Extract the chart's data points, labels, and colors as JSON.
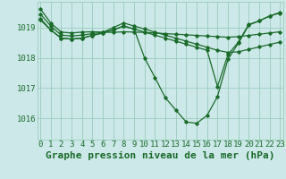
{
  "background_color": "#cce8e8",
  "grid_color": "#99ccbb",
  "line_color": "#1a6b2a",
  "title": "Graphe pression niveau de la mer (hPa)",
  "xlabel_ticks": [
    0,
    1,
    2,
    3,
    4,
    5,
    6,
    7,
    8,
    9,
    10,
    11,
    12,
    13,
    14,
    15,
    16,
    17,
    18,
    19,
    20,
    21,
    22,
    23
  ],
  "yticks": [
    1016,
    1017,
    1018,
    1019
  ],
  "ylim": [
    1015.3,
    1019.85
  ],
  "xlim": [
    -0.3,
    23.3
  ],
  "series": [
    [
      1019.62,
      1019.15,
      1018.85,
      1018.82,
      1018.85,
      1018.86,
      1018.85,
      1018.84,
      1018.86,
      1018.85,
      1018.84,
      1018.82,
      1018.8,
      1018.78,
      1018.76,
      1018.74,
      1018.72,
      1018.7,
      1018.68,
      1018.7,
      1018.74,
      1018.78,
      1018.82,
      1018.86
    ],
    [
      1019.45,
      1019.05,
      1018.75,
      1018.72,
      1018.75,
      1018.8,
      1018.84,
      1019.0,
      1019.15,
      1019.05,
      1018.95,
      1018.85,
      1018.75,
      1018.65,
      1018.55,
      1018.45,
      1018.35,
      1018.25,
      1018.18,
      1018.2,
      1018.28,
      1018.36,
      1018.44,
      1018.52
    ],
    [
      1019.3,
      1018.92,
      1018.65,
      1018.62,
      1018.65,
      1018.74,
      1018.82,
      1018.92,
      1019.05,
      1018.95,
      1018.85,
      1018.75,
      1018.65,
      1018.55,
      1018.45,
      1018.35,
      1018.25,
      1017.05,
      1018.1,
      1018.52,
      1019.1,
      1019.22,
      1019.38,
      1019.48
    ],
    [
      1019.25,
      1018.92,
      1018.65,
      1018.62,
      1018.65,
      1018.74,
      1018.82,
      1018.92,
      1019.05,
      1018.95,
      1018.0,
      1017.35,
      1016.68,
      1016.28,
      1015.88,
      1015.84,
      1016.1,
      1016.72,
      1017.95,
      1018.48,
      1019.08,
      1019.22,
      1019.38,
      1019.5
    ]
  ],
  "title_fontsize": 8,
  "tick_fontsize": 6.5,
  "marker": "D",
  "markersize": 1.8,
  "linewidth": 0.9
}
